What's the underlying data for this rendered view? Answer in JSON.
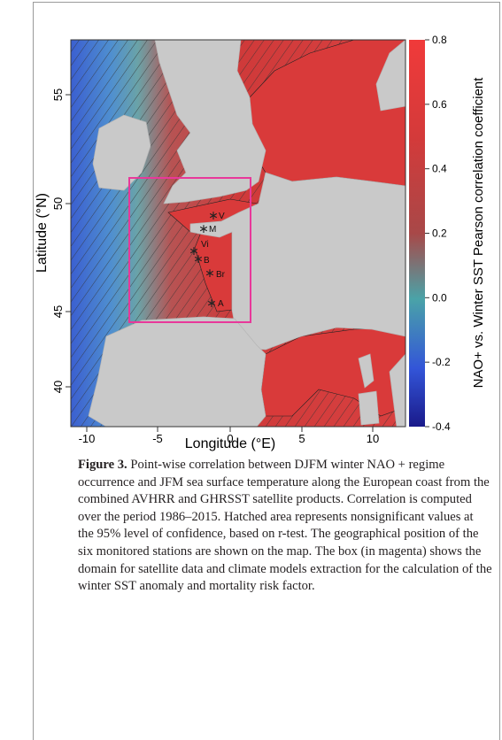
{
  "figure": {
    "y_axis_label": "Latitude (°N)",
    "x_axis_label": "Longitude (°E)",
    "x_ticks": [
      "-10",
      "-5",
      "0",
      "5",
      "10"
    ],
    "y_ticks": [
      "55",
      "50",
      "45",
      "40"
    ],
    "colorbar_label": "NAO+ vs. Winter SST Pearson correlation coefficient",
    "colorbar_ticks": [
      "0.8",
      "0.6",
      "0.4",
      "0.2",
      "0.0",
      "-0.2",
      "-0.4"
    ],
    "stations": [
      "V",
      "M",
      "Vi",
      "B",
      "Br",
      "A"
    ]
  },
  "caption": {
    "label": "Figure 3.",
    "text": "Point-wise correlation between DJFM winter NAO + regime occurrence and JFM sea surface temperature along the European coast from the combined AVHRR and GHRSST satellite products. Correlation is computed over the period 1986–2015. Hatched area represents nonsignificant values at the 95% level of confidence, based on r-test. The geographical position of the six monitored stations are shown on the map. The box (in magenta) shows the domain for satellite data and climate models extraction for the calculation of the winter SST anomaly and mortality risk factor."
  }
}
